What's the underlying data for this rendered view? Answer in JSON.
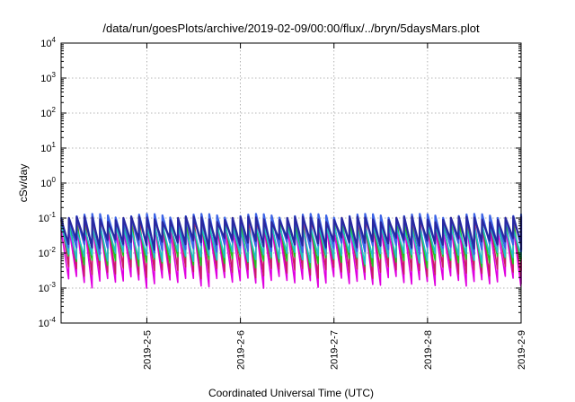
{
  "chart_data": {
    "type": "line",
    "title": "/data/run/goesPlots/archive/2019-02-09/00:00/flux/../bryn/5daysMars.plot",
    "xlabel": "Coordinated Universal Time (UTC)",
    "ylabel": "cSv/day",
    "yscale": "log",
    "ylim": [
      0.0001,
      10000
    ],
    "yticks": [
      {
        "base": "10",
        "exp": "4",
        "value": 10000
      },
      {
        "base": "10",
        "exp": "3",
        "value": 1000
      },
      {
        "base": "10",
        "exp": "2",
        "value": 100
      },
      {
        "base": "10",
        "exp": "1",
        "value": 10
      },
      {
        "base": "10",
        "exp": "0",
        "value": 1
      },
      {
        "base": "10",
        "exp": "-1",
        "value": 0.1
      },
      {
        "base": "10",
        "exp": "-2",
        "value": 0.01
      },
      {
        "base": "10",
        "exp": "-3",
        "value": 0.001
      },
      {
        "base": "10",
        "exp": "-4",
        "value": 0.0001
      }
    ],
    "xlim": [
      "2019-02-04T02:00",
      "2019-02-09T00:00"
    ],
    "xticks": [
      {
        "label": "2019-2-5",
        "date": "2019-02-05"
      },
      {
        "label": "2019-2-6",
        "date": "2019-02-06"
      },
      {
        "label": "2019-2-7",
        "date": "2019-02-07"
      },
      {
        "label": "2019-2-8",
        "date": "2019-02-08"
      },
      {
        "label": "2019-2-9",
        "date": "2019-02-09"
      }
    ],
    "grid": true,
    "sawtooth_period_hours": 2,
    "series": [
      {
        "color": "#e000e0",
        "peak": 0.06,
        "trough": 0.0016
      },
      {
        "color": "#c81e64",
        "peak": 0.095,
        "trough": 0.003
      },
      {
        "color": "#1ec81e",
        "peak": 0.07,
        "trough": 0.006
      },
      {
        "color": "#20c0c8",
        "peak": 0.06,
        "trough": 0.008
      },
      {
        "color": "#3c64e6",
        "peak": 0.12,
        "trough": 0.015
      },
      {
        "color": "#2828a0",
        "peak": 0.1,
        "trough": 0.02
      }
    ]
  }
}
